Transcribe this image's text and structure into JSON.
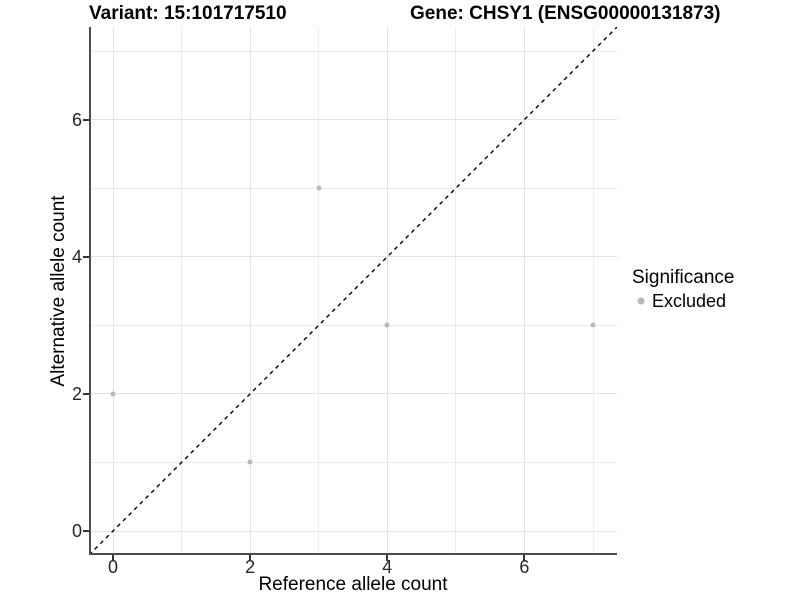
{
  "header": {
    "variant_title": "Variant: 15:101717510",
    "gene_title": "Gene: CHSY1 (ENSG00000131873)"
  },
  "chart_data": {
    "type": "scatter",
    "xlabel": "Reference allele count",
    "ylabel": "Alternative allele count",
    "xlim": [
      -0.35,
      7.35
    ],
    "ylim": [
      -0.35,
      7.35
    ],
    "x_ticks": [
      0,
      2,
      4,
      6
    ],
    "y_ticks": [
      0,
      2,
      4,
      6
    ],
    "x_minor_ticks": [
      1,
      3,
      5,
      7
    ],
    "y_minor_ticks": [
      1,
      3,
      5,
      7
    ],
    "grid": true,
    "identity_line": {
      "style": "dashed",
      "color": "#000000"
    },
    "series": [
      {
        "name": "Excluded",
        "color": "#b9b9b9",
        "points": [
          [
            0,
            2
          ],
          [
            2,
            1
          ],
          [
            3,
            5
          ],
          [
            4,
            3
          ],
          [
            7,
            3
          ]
        ]
      }
    ],
    "legend": {
      "position": "right",
      "title": "Significance",
      "items": [
        {
          "label": "Excluded",
          "color": "#b9b9b9"
        }
      ]
    }
  },
  "colors": {
    "axis_line": "#4d4d4d",
    "grid_major": "#e3e3e3",
    "grid_minor": "#ececec",
    "tick_label": "#262626",
    "point": "#b9b9b9"
  }
}
